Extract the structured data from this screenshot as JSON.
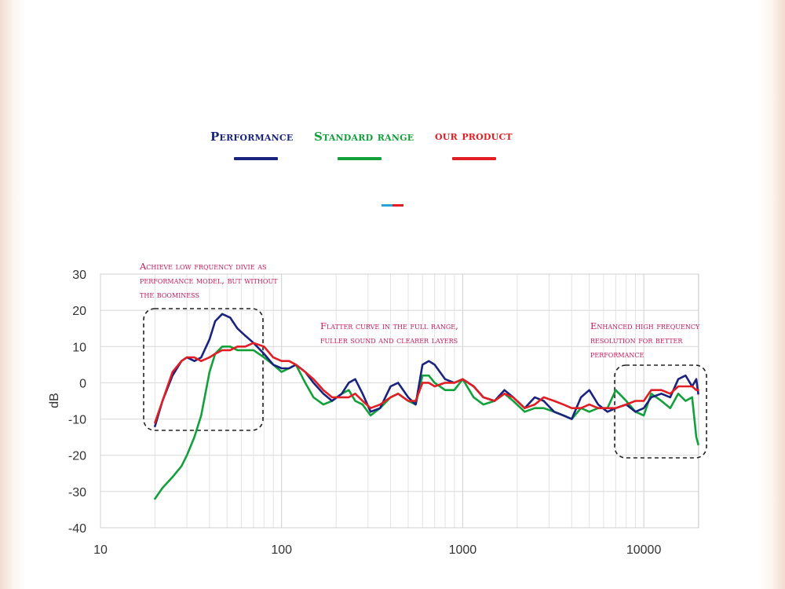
{
  "colors": {
    "performance": "#1a237e",
    "standard_range": "#12a03a",
    "our_product": "#e01e23",
    "annotation": "#c2185b",
    "grid": "#dcdcdc",
    "box": "#222222"
  },
  "legend": [
    {
      "label": "Performance",
      "color": "#1a237e"
    },
    {
      "label": "Standard range",
      "color": "#12a03a"
    },
    {
      "label": "our product",
      "color": "#e01e23"
    }
  ],
  "annotations": {
    "low": "Achieve low frquency divie as\nperformance model, but without\nthe boominess",
    "mid": "Flatter curve in the full range,\nfuller sound and clearer layers",
    "high": "Enhanced high frequency\nresolution for better\n    performance"
  },
  "chart_data": {
    "type": "line",
    "title": "",
    "xlabel": "",
    "ylabel": "dB",
    "x_scale": "log",
    "xlim": [
      10,
      20000
    ],
    "ylim": [
      -40,
      30
    ],
    "x_ticks": [
      10,
      100,
      1000,
      10000
    ],
    "x_tick_labels": [
      "10",
      "100",
      "1000",
      "10000"
    ],
    "y_ticks": [
      30,
      20,
      10,
      0,
      -10,
      -20,
      -30,
      -40
    ],
    "y_tick_labels": [
      "30",
      "20",
      "10",
      "0",
      "-10",
      "-20",
      "-30",
      "-40"
    ],
    "grid": true,
    "series": [
      {
        "name": "Performance",
        "color": "#1a237e",
        "x": [
          20,
          22,
          25,
          28,
          30,
          33,
          36,
          40,
          43,
          47,
          52,
          57,
          63,
          70,
          80,
          90,
          100,
          110,
          120,
          135,
          150,
          170,
          190,
          215,
          235,
          255,
          280,
          310,
          350,
          400,
          440,
          500,
          550,
          600,
          650,
          700,
          800,
          900,
          1000,
          1150,
          1300,
          1500,
          1700,
          1900,
          2200,
          2500,
          2800,
          3200,
          3600,
          4000,
          4500,
          5000,
          5600,
          6300,
          7000,
          8000,
          9000,
          10000,
          11000,
          12500,
          14000,
          15500,
          17000,
          18500,
          19500,
          20000
        ],
        "y": [
          -12,
          -5,
          2,
          6,
          7,
          6,
          7,
          12,
          17,
          19,
          18,
          15,
          13,
          11,
          8,
          5,
          4,
          4,
          5,
          3,
          0,
          -3,
          -5,
          -3,
          0,
          1,
          -3,
          -8,
          -7,
          -1,
          0,
          -4,
          -6,
          5,
          6,
          5,
          1,
          0,
          1,
          -1,
          -4,
          -5,
          -2,
          -4,
          -7,
          -4,
          -5,
          -8,
          -9,
          -10,
          -4,
          -2,
          -6,
          -8,
          -7,
          -6,
          -8,
          -7,
          -4,
          -3,
          -4,
          1,
          2,
          -1,
          1,
          -3
        ]
      },
      {
        "name": "Standard range",
        "color": "#12a03a",
        "x": [
          20,
          22,
          25,
          28,
          30,
          33,
          36,
          40,
          43,
          47,
          52,
          57,
          63,
          70,
          80,
          90,
          100,
          110,
          120,
          135,
          150,
          170,
          190,
          215,
          235,
          255,
          280,
          310,
          350,
          400,
          440,
          500,
          550,
          600,
          650,
          700,
          800,
          900,
          1000,
          1150,
          1300,
          1500,
          1700,
          1900,
          2200,
          2500,
          2800,
          3200,
          3600,
          4000,
          4500,
          5000,
          5600,
          6300,
          7000,
          8000,
          9000,
          10000,
          11000,
          12500,
          14000,
          15500,
          17000,
          18500,
          19500,
          20000
        ],
        "y": [
          -32,
          -29,
          -26,
          -23,
          -20,
          -15,
          -9,
          3,
          8,
          10,
          10,
          9,
          9,
          9,
          7,
          5,
          3,
          4,
          5,
          0,
          -4,
          -6,
          -5,
          -3,
          -2,
          -5,
          -6,
          -9,
          -7,
          -4,
          -3,
          -5,
          -6,
          2,
          2,
          0,
          -2,
          -2,
          1,
          -4,
          -6,
          -5,
          -3,
          -5,
          -8,
          -7,
          -7,
          -8,
          -9,
          -10,
          -7,
          -8,
          -7,
          -7,
          -2,
          -5,
          -8,
          -9,
          -3,
          -5,
          -7,
          -3,
          -5,
          -4,
          -15,
          -17
        ]
      },
      {
        "name": "our product",
        "color": "#e01e23",
        "x": [
          20,
          22,
          25,
          28,
          30,
          33,
          36,
          40,
          43,
          47,
          52,
          57,
          63,
          70,
          80,
          90,
          100,
          110,
          120,
          135,
          150,
          170,
          190,
          215,
          235,
          255,
          280,
          310,
          350,
          400,
          440,
          500,
          550,
          600,
          650,
          700,
          800,
          900,
          1000,
          1150,
          1300,
          1500,
          1700,
          1900,
          2200,
          2500,
          2800,
          3200,
          3600,
          4000,
          4500,
          5000,
          5600,
          6300,
          7000,
          8000,
          9000,
          10000,
          11000,
          12500,
          14000,
          15500,
          17000,
          18500,
          19500,
          20000
        ],
        "y": [
          -11,
          -5,
          3,
          6,
          7,
          7,
          6,
          7,
          8,
          9,
          9,
          10,
          10,
          11,
          10,
          7,
          6,
          6,
          5,
          3,
          1,
          -2,
          -4,
          -4,
          -4,
          -3,
          -5,
          -7,
          -6,
          -4,
          -3,
          -5,
          -5,
          0,
          0,
          -1,
          0,
          0,
          1,
          -1,
          -4,
          -5,
          -3,
          -4,
          -7,
          -6,
          -4,
          -5,
          -6,
          -7,
          -7,
          -6,
          -7,
          -7,
          -7,
          -6,
          -5,
          -5,
          -2,
          -2,
          -3,
          -1,
          -1,
          -1,
          -2,
          -2
        ]
      }
    ]
  }
}
